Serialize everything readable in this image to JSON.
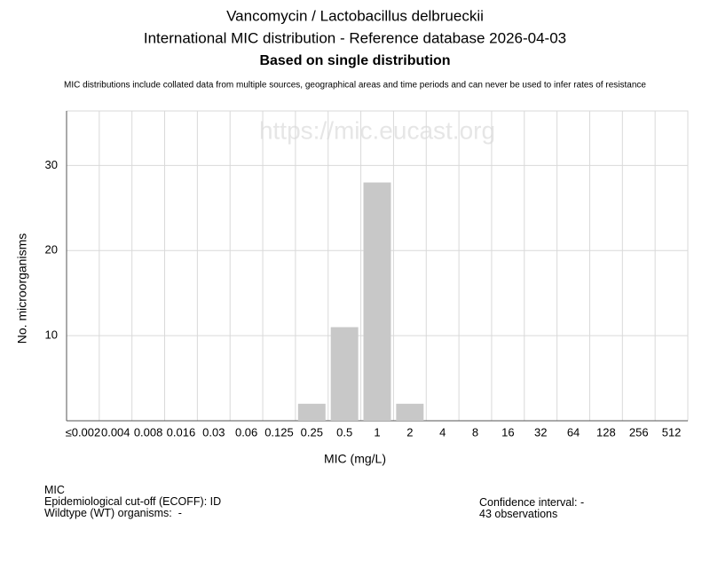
{
  "chart_data": {
    "type": "bar",
    "title": [
      "Vancomycin / Lactobacillus delbrueckii",
      "International MIC distribution - Reference database 2026-04-03"
    ],
    "subtitle": "Based on single distribution",
    "note": "MIC distributions include collated data from multiple sources, geographical areas and time periods and can never be used to infer rates of resistance",
    "watermark": "https://mic.eucast.org",
    "x_label": "MIC (mg/L)",
    "y_label": "No. microorganisms",
    "categories": [
      "≤0.002",
      "0.004",
      "0.008",
      "0.016",
      "0.03",
      "0.06",
      "0.125",
      "0.25",
      "0.5",
      "1",
      "2",
      "4",
      "8",
      "16",
      "32",
      "64",
      "128",
      "256",
      "512"
    ],
    "values": [
      0,
      0,
      0,
      0,
      0,
      0,
      0,
      2,
      11,
      28,
      2,
      0,
      0,
      0,
      0,
      0,
      0,
      0,
      0
    ],
    "color": "#c8c8c8",
    "ylim": [
      0,
      36.4
    ],
    "yticks": [
      10,
      20,
      30
    ],
    "grid": true
  },
  "footer": {
    "left": [
      "MIC",
      "Epidemiological cut-off (ECOFF): ID",
      "Wildtype (WT) organisms:  -"
    ],
    "right": [
      "Confidence interval: -",
      "43 observations"
    ]
  }
}
